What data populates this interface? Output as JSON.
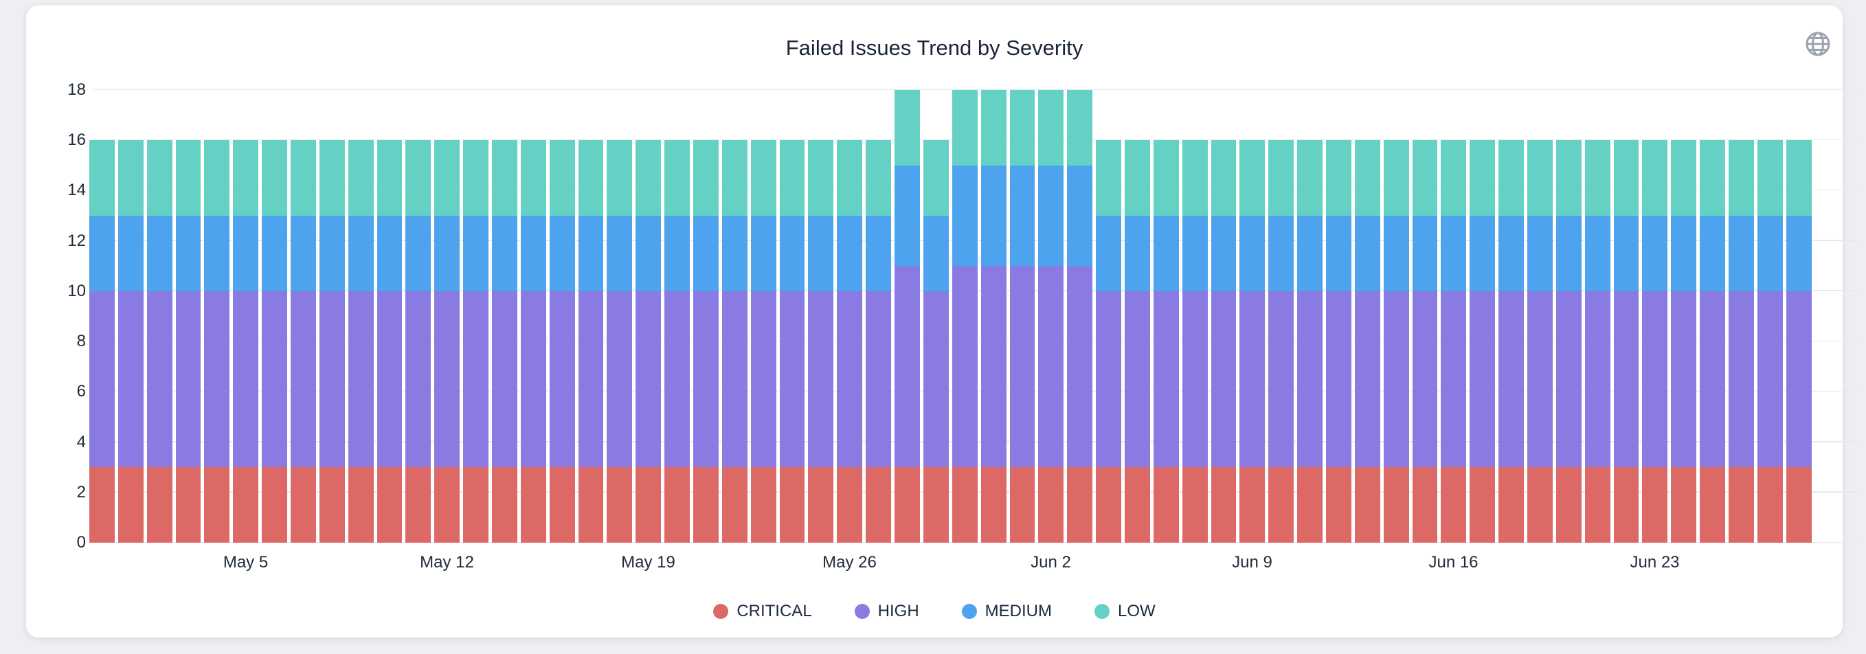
{
  "page": {
    "background": "#edeff2"
  },
  "card": {
    "background": "#ffffff"
  },
  "header": {
    "title": "Failed Issues Trend by Severity",
    "globe_icon": "globe-icon",
    "globe_icon_color": "#9aa3af"
  },
  "chart_data": {
    "type": "bar",
    "stacked": true,
    "title": "Failed Issues Trend by Severity",
    "xlabel": "",
    "ylabel": "",
    "ylim": [
      0,
      18
    ],
    "yticks": [
      0,
      2,
      4,
      6,
      8,
      10,
      12,
      14,
      16,
      18
    ],
    "grid": true,
    "legend_position": "bottom",
    "x": [
      "Apr 30",
      "May 1",
      "May 2",
      "May 3",
      "May 4",
      "May 5",
      "May 6",
      "May 7",
      "May 8",
      "May 9",
      "May 10",
      "May 11",
      "May 12",
      "May 13",
      "May 14",
      "May 15",
      "May 16",
      "May 17",
      "May 18",
      "May 19",
      "May 20",
      "May 21",
      "May 22",
      "May 23",
      "May 24",
      "May 25",
      "May 26",
      "May 27",
      "May 28",
      "May 29",
      "May 30",
      "May 31",
      "Jun 1",
      "Jun 2",
      "Jun 3",
      "Jun 4",
      "Jun 5",
      "Jun 6",
      "Jun 7",
      "Jun 8",
      "Jun 9",
      "Jun 10",
      "Jun 11",
      "Jun 12",
      "Jun 13",
      "Jun 14",
      "Jun 15",
      "Jun 16",
      "Jun 17",
      "Jun 18",
      "Jun 19",
      "Jun 20",
      "Jun 21",
      "Jun 22",
      "Jun 23",
      "Jun 24",
      "Jun 25",
      "Jun 26",
      "Jun 27",
      "Jun 28"
    ],
    "x_tick_labels": [
      "May 5",
      "May 12",
      "May 19",
      "May 26",
      "Jun 2",
      "Jun 9",
      "Jun 16",
      "Jun 23"
    ],
    "x_tick_indices": [
      5,
      12,
      19,
      26,
      33,
      40,
      47,
      54
    ],
    "series": [
      {
        "name": "CRITICAL",
        "color": "#DD6966",
        "values": [
          3,
          3,
          3,
          3,
          3,
          3,
          3,
          3,
          3,
          3,
          3,
          3,
          3,
          3,
          3,
          3,
          3,
          3,
          3,
          3,
          3,
          3,
          3,
          3,
          3,
          3,
          3,
          3,
          3,
          3,
          3,
          3,
          3,
          3,
          3,
          3,
          3,
          3,
          3,
          3,
          3,
          3,
          3,
          3,
          3,
          3,
          3,
          3,
          3,
          3,
          3,
          3,
          3,
          3,
          3,
          3,
          3,
          3,
          3,
          3
        ]
      },
      {
        "name": "HIGH",
        "color": "#8A7BE2",
        "values": [
          7,
          7,
          7,
          7,
          7,
          7,
          7,
          7,
          7,
          7,
          7,
          7,
          7,
          7,
          7,
          7,
          7,
          7,
          7,
          7,
          7,
          7,
          7,
          7,
          7,
          7,
          7,
          7,
          8,
          7,
          8,
          8,
          8,
          8,
          8,
          7,
          7,
          7,
          7,
          7,
          7,
          7,
          7,
          7,
          7,
          7,
          7,
          7,
          7,
          7,
          7,
          7,
          7,
          7,
          7,
          7,
          7,
          7,
          7,
          7
        ]
      },
      {
        "name": "MEDIUM",
        "color": "#4EA3EF",
        "values": [
          3,
          3,
          3,
          3,
          3,
          3,
          3,
          3,
          3,
          3,
          3,
          3,
          3,
          3,
          3,
          3,
          3,
          3,
          3,
          3,
          3,
          3,
          3,
          3,
          3,
          3,
          3,
          3,
          4,
          3,
          4,
          4,
          4,
          4,
          4,
          3,
          3,
          3,
          3,
          3,
          3,
          3,
          3,
          3,
          3,
          3,
          3,
          3,
          3,
          3,
          3,
          3,
          3,
          3,
          3,
          3,
          3,
          3,
          3,
          3
        ]
      },
      {
        "name": "LOW",
        "color": "#65D1C5",
        "values": [
          3,
          3,
          3,
          3,
          3,
          3,
          3,
          3,
          3,
          3,
          3,
          3,
          3,
          3,
          3,
          3,
          3,
          3,
          3,
          3,
          3,
          3,
          3,
          3,
          3,
          3,
          3,
          3,
          3,
          3,
          3,
          3,
          3,
          3,
          3,
          3,
          3,
          3,
          3,
          3,
          3,
          3,
          3,
          3,
          3,
          3,
          3,
          3,
          3,
          3,
          3,
          3,
          3,
          3,
          3,
          3,
          3,
          3,
          3,
          3
        ]
      }
    ]
  }
}
